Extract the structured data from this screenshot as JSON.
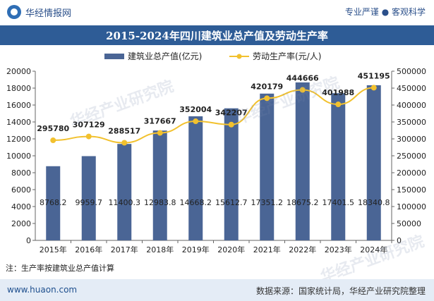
{
  "header": {
    "brand": "华经情报网",
    "slogan": "专业严谨 ● 客观科学"
  },
  "footer": {
    "site": "www.huaon.com",
    "source": "数据来源：国家统计局，华经产业研究院整理"
  },
  "note": "注：生产率按建筑业总产值计算",
  "watermark": "华经产业研究院",
  "colors": {
    "bar": "#4a6595",
    "line": "#f2c12e",
    "title_bg": "#2e5c96"
  },
  "chart_data": {
    "type": "bar",
    "title": "2015-2024年四川建筑业总产值及劳动生产率",
    "categories": [
      "2015年",
      "2016年",
      "2017年",
      "2018年",
      "2019年",
      "2020年",
      "2021年",
      "2022年",
      "2023年",
      "2024年"
    ],
    "series": [
      {
        "name": "建筑业总产值(亿元)",
        "type": "bar",
        "axis": "left",
        "values": [
          8768.2,
          9959.7,
          11400.3,
          12983.8,
          14668.2,
          15612.7,
          17351.2,
          18675.2,
          17401.5,
          18340.8
        ]
      },
      {
        "name": "劳动生产率(元/人)",
        "type": "line",
        "axis": "right",
        "values": [
          295780,
          307129,
          288517,
          317667,
          352004,
          342207,
          420179,
          444666,
          401988,
          451195
        ]
      }
    ],
    "y_left": {
      "min": 0,
      "max": 20000,
      "ticks": [
        0,
        2000,
        4000,
        6000,
        8000,
        10000,
        12000,
        14000,
        16000,
        18000,
        20000
      ]
    },
    "y_right": {
      "min": 0,
      "max": 500000,
      "ticks": [
        0,
        50000,
        100000,
        150000,
        200000,
        250000,
        300000,
        350000,
        400000,
        450000,
        500000
      ]
    },
    "legend_position": "top-center",
    "grid": false
  }
}
